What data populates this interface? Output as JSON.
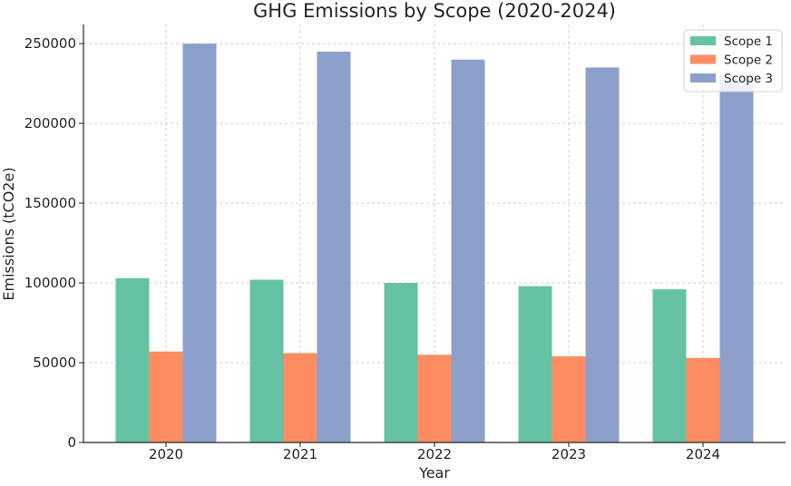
{
  "chart_data": {
    "type": "bar",
    "title": "GHG Emissions by Scope (2020-2024)",
    "xlabel": "Year",
    "ylabel": "Emissions (tCO2e)",
    "categories": [
      "2020",
      "2021",
      "2022",
      "2023",
      "2024"
    ],
    "series": [
      {
        "name": "Scope 1",
        "color": "#66c2a5",
        "values": [
          103000,
          102000,
          100000,
          98000,
          96000
        ]
      },
      {
        "name": "Scope 2",
        "color": "#fc8d62",
        "values": [
          57000,
          56000,
          55000,
          54000,
          53000
        ]
      },
      {
        "name": "Scope 3",
        "color": "#8da0cb",
        "values": [
          250000,
          245000,
          240000,
          235000,
          230000
        ]
      }
    ],
    "ylim": [
      0,
      262000
    ],
    "yticks": [
      0,
      50000,
      100000,
      150000,
      200000,
      250000
    ],
    "ytick_labels": [
      "0",
      "50000",
      "100000",
      "150000",
      "200000",
      "250000"
    ],
    "grid": true,
    "legend_position": "top-right"
  }
}
